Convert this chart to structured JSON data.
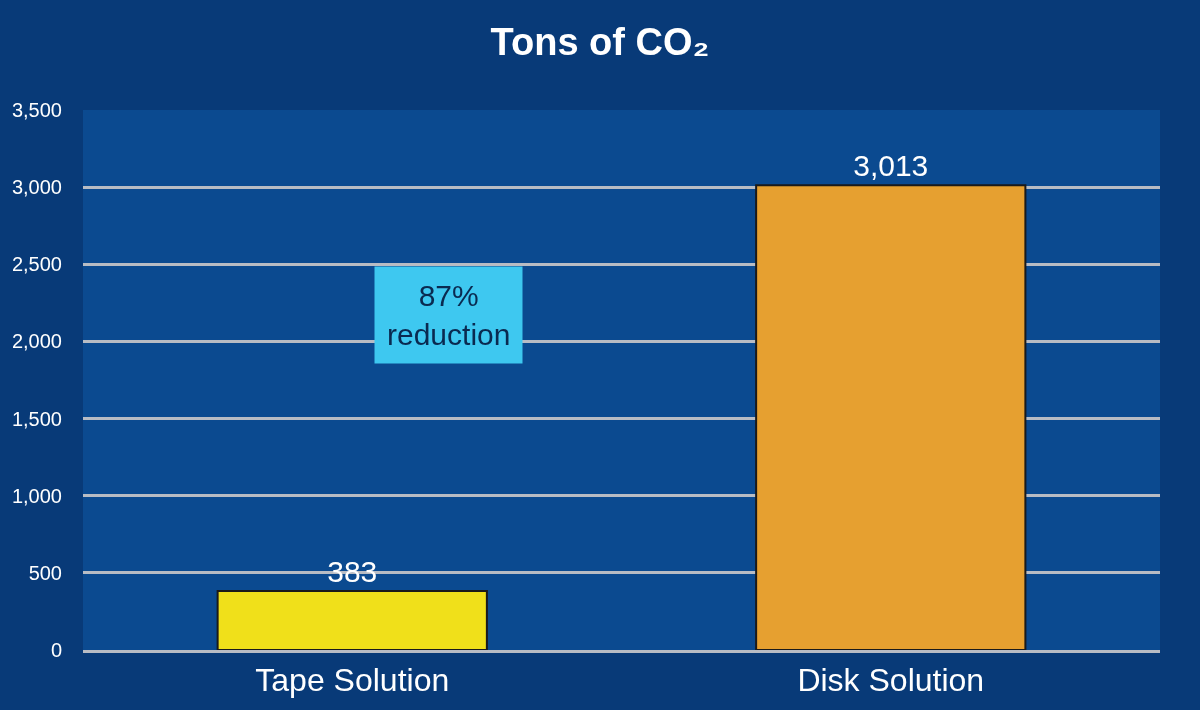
{
  "chart_data": {
    "type": "bar",
    "title": "Tons of CO₂",
    "categories": [
      "Tape Solution",
      "Disk Solution"
    ],
    "values": [
      383,
      3013
    ],
    "colors": [
      "#f0e01a",
      "#e6a030"
    ],
    "value_labels": [
      "383",
      "3,013"
    ],
    "ylim": [
      0,
      3500
    ],
    "yticks": [
      0,
      500,
      {
        "value": 1000,
        "label": "1,000"
      },
      {
        "value": 1500,
        "label": "1,500"
      },
      {
        "value": 2000,
        "label": "2,000"
      },
      {
        "value": 2500,
        "label": "2,500"
      },
      {
        "value": 3000,
        "label": "3,000"
      },
      {
        "value": 3500,
        "label": "3,500"
      }
    ],
    "grid": "y",
    "annotations": [
      "87%\nreduction"
    ]
  }
}
